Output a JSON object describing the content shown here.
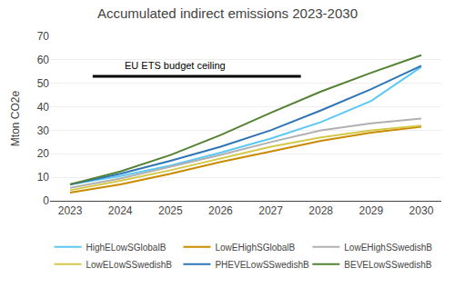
{
  "chart_data": {
    "type": "line",
    "title": "Accumulated indirect emissions 2023-2030",
    "ylabel": "Mton CO2e",
    "x": [
      2023,
      2024,
      2025,
      2026,
      2027,
      2028,
      2029,
      2030
    ],
    "series": [
      {
        "name": "HighELowSGlobalB",
        "color": "#5bc8f5",
        "values": [
          7.0,
          10.5,
          15.0,
          20.5,
          26.5,
          33.5,
          42.5,
          57.0
        ]
      },
      {
        "name": "LowEHighSGlobalB",
        "color": "#c98a00",
        "values": [
          3.5,
          7.0,
          11.5,
          16.5,
          21.0,
          25.5,
          29.0,
          31.5
        ]
      },
      {
        "name": "LowEHighSSwedishB",
        "color": "#b0b0b0",
        "values": [
          5.5,
          9.5,
          14.5,
          19.5,
          25.0,
          30.0,
          33.0,
          35.0
        ]
      },
      {
        "name": "LowELowSSwedishB",
        "color": "#d4c84a",
        "values": [
          4.5,
          8.5,
          13.0,
          18.0,
          23.0,
          27.0,
          30.0,
          32.0
        ]
      },
      {
        "name": "PHEVELowSSwedishB",
        "color": "#2e75b6",
        "values": [
          7.0,
          11.5,
          17.0,
          23.0,
          30.0,
          38.5,
          47.5,
          57.5
        ]
      },
      {
        "name": "BEVELowSSwedishB",
        "color": "#548235",
        "values": [
          7.0,
          12.5,
          19.5,
          28.0,
          37.5,
          46.5,
          54.5,
          62.0
        ]
      }
    ],
    "xlim": [
      2022.6,
      2030.4
    ],
    "xticks": [
      2023,
      2024,
      2025,
      2026,
      2027,
      2028,
      2029,
      2030
    ],
    "ylim": [
      0,
      70
    ],
    "yticks": [
      0,
      10,
      20,
      30,
      40,
      50,
      60,
      70
    ],
    "grid": true,
    "legend": "bottom",
    "reference_lines": [
      {
        "y": 53.0,
        "x": [
          2023.45,
          2027.6
        ],
        "color": "#000000"
      }
    ],
    "annotations": [
      {
        "text": "EU ETS budget ceiling",
        "x": 2024.05,
        "y": 54.5
      }
    ]
  }
}
